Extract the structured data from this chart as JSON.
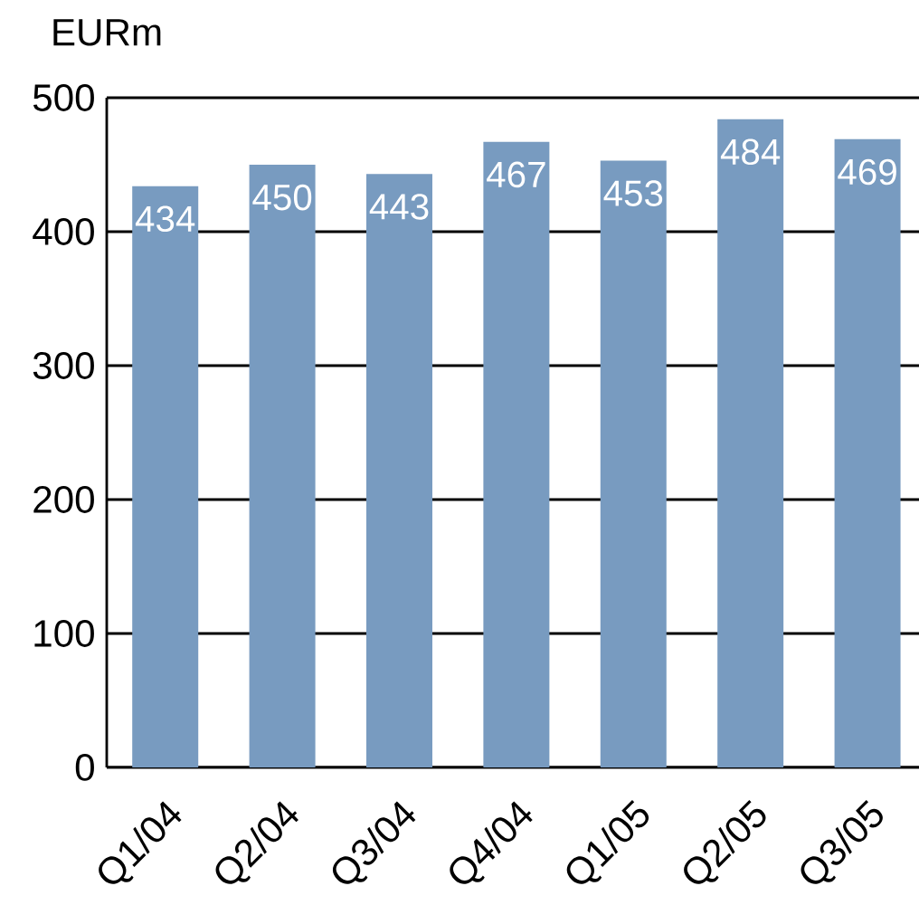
{
  "chart_data": {
    "type": "bar",
    "ylabel": "EURm",
    "categories": [
      "Q1/04",
      "Q2/04",
      "Q3/04",
      "Q4/04",
      "Q1/05",
      "Q2/05",
      "Q3/05"
    ],
    "values": [
      434,
      450,
      443,
      467,
      453,
      484,
      469
    ],
    "color": "#789bc0",
    "ylim": [
      0,
      500
    ],
    "yticks": [
      0,
      100,
      200,
      300,
      400,
      500
    ],
    "grid": "y",
    "data_labels": true
  }
}
